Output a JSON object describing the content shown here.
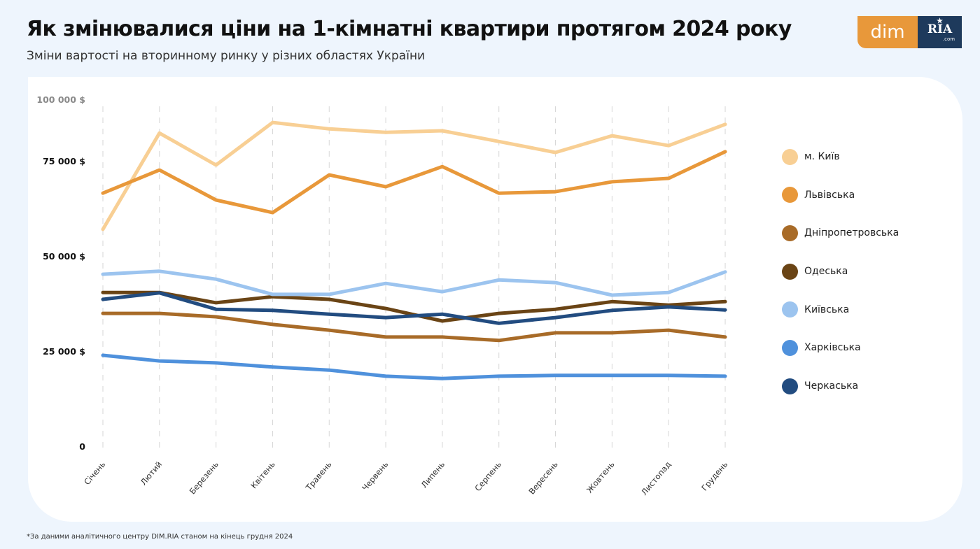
{
  "header": {
    "title": "Як змінювалися ціни на 1-кімнатні квартири протягом 2024 року",
    "subtitle": "Зміни вартості на вторинному ринку у різних областях України"
  },
  "logo": {
    "left_text": "dim",
    "right_text": "RIA",
    "right_suffix": ".com",
    "left_color": "#e8983a",
    "right_color": "#1e3a5c"
  },
  "footnote": "*За даними аналітичного центру DIM.RIA станом на кінець грудня 2024",
  "chart_data": {
    "type": "line",
    "title": "Як змінювалися ціни на 1-кімнатні квартири протягом 2024 року",
    "subtitle": "Зміни вартості на вторинному ринку у різних областях України",
    "xlabel": "",
    "ylabel": "",
    "ylim": [
      0,
      100000
    ],
    "grid": "vertical dashed",
    "legend_position": "right",
    "y_ticks": [
      {
        "value": 0,
        "label": "0"
      },
      {
        "value": 25000,
        "label": "25 000 $"
      },
      {
        "value": 50000,
        "label": "50 000 $"
      },
      {
        "value": 75000,
        "label": "75 000 $"
      },
      {
        "value": 100000,
        "label": "100 000 $"
      }
    ],
    "categories": [
      "Січень",
      "Лютий",
      "Березень",
      "Квітень",
      "Травень",
      "Червень",
      "Липень",
      "Серпень",
      "Вересень",
      "Жовтень",
      "Листопад",
      "Грудень"
    ],
    "series": [
      {
        "name": "м. Київ",
        "color": "#f8cf94",
        "values": [
          57000,
          82300,
          73900,
          85100,
          83400,
          82500,
          82900,
          80100,
          77200,
          81600,
          79000,
          84600
        ]
      },
      {
        "name": "Львівська",
        "color": "#e8983a",
        "values": [
          66500,
          72600,
          64700,
          61400,
          71300,
          68200,
          73500,
          66500,
          66900,
          69500,
          70400,
          77400
        ]
      },
      {
        "name": "Дніпропетровська",
        "color": "#a86b28",
        "values": [
          34900,
          34900,
          34000,
          32000,
          30500,
          28700,
          28700,
          27800,
          29800,
          29800,
          30500,
          28700
        ]
      },
      {
        "name": "Одеська",
        "color": "#6a4415",
        "values": [
          40400,
          40400,
          37700,
          39300,
          38600,
          36200,
          32900,
          34900,
          36000,
          38000,
          37100,
          38000
        ]
      },
      {
        "name": "Київська",
        "color": "#9cc4ef",
        "values": [
          45200,
          46000,
          43900,
          39900,
          39900,
          42800,
          40600,
          43700,
          43000,
          39700,
          40400,
          45800
        ]
      },
      {
        "name": "Харківська",
        "color": "#4f91dc",
        "values": [
          23900,
          22400,
          21900,
          20800,
          20000,
          18400,
          17800,
          18400,
          18600,
          18600,
          18600,
          18400
        ]
      },
      {
        "name": "Черкаська",
        "color": "#224c80",
        "values": [
          38600,
          40300,
          36000,
          35700,
          34700,
          33800,
          34700,
          32300,
          33800,
          35700,
          36600,
          35800
        ]
      }
    ]
  }
}
